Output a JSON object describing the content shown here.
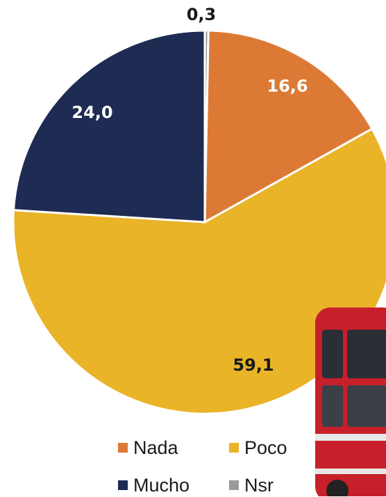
{
  "chart_data": {
    "type": "pie",
    "categories": [
      "Nada",
      "Poco",
      "Mucho",
      "Nsr"
    ],
    "values": [
      16.6,
      59.1,
      24.0,
      0.3
    ],
    "data_labels": [
      "16,6",
      "59,1",
      "24,0",
      "0,3"
    ],
    "colors": [
      "#DC7A35",
      "#E9B428",
      "#1E2B52",
      "#9A9A9A"
    ],
    "label_colors": [
      "#ffffff",
      "#1a1a1a",
      "#ffffff",
      "#1a1a1a"
    ],
    "legend": {
      "placement": "bottom",
      "entries": [
        {
          "label": "Nada",
          "color": "#DC7A35"
        },
        {
          "label": "Poco",
          "color": "#E9B428"
        },
        {
          "label": "Mucho",
          "color": "#1E2B52"
        },
        {
          "label": "Nsr",
          "color": "#9A9A9A"
        }
      ]
    }
  },
  "decoration": {
    "icon": "bus-icon",
    "color": "#C8202A"
  }
}
